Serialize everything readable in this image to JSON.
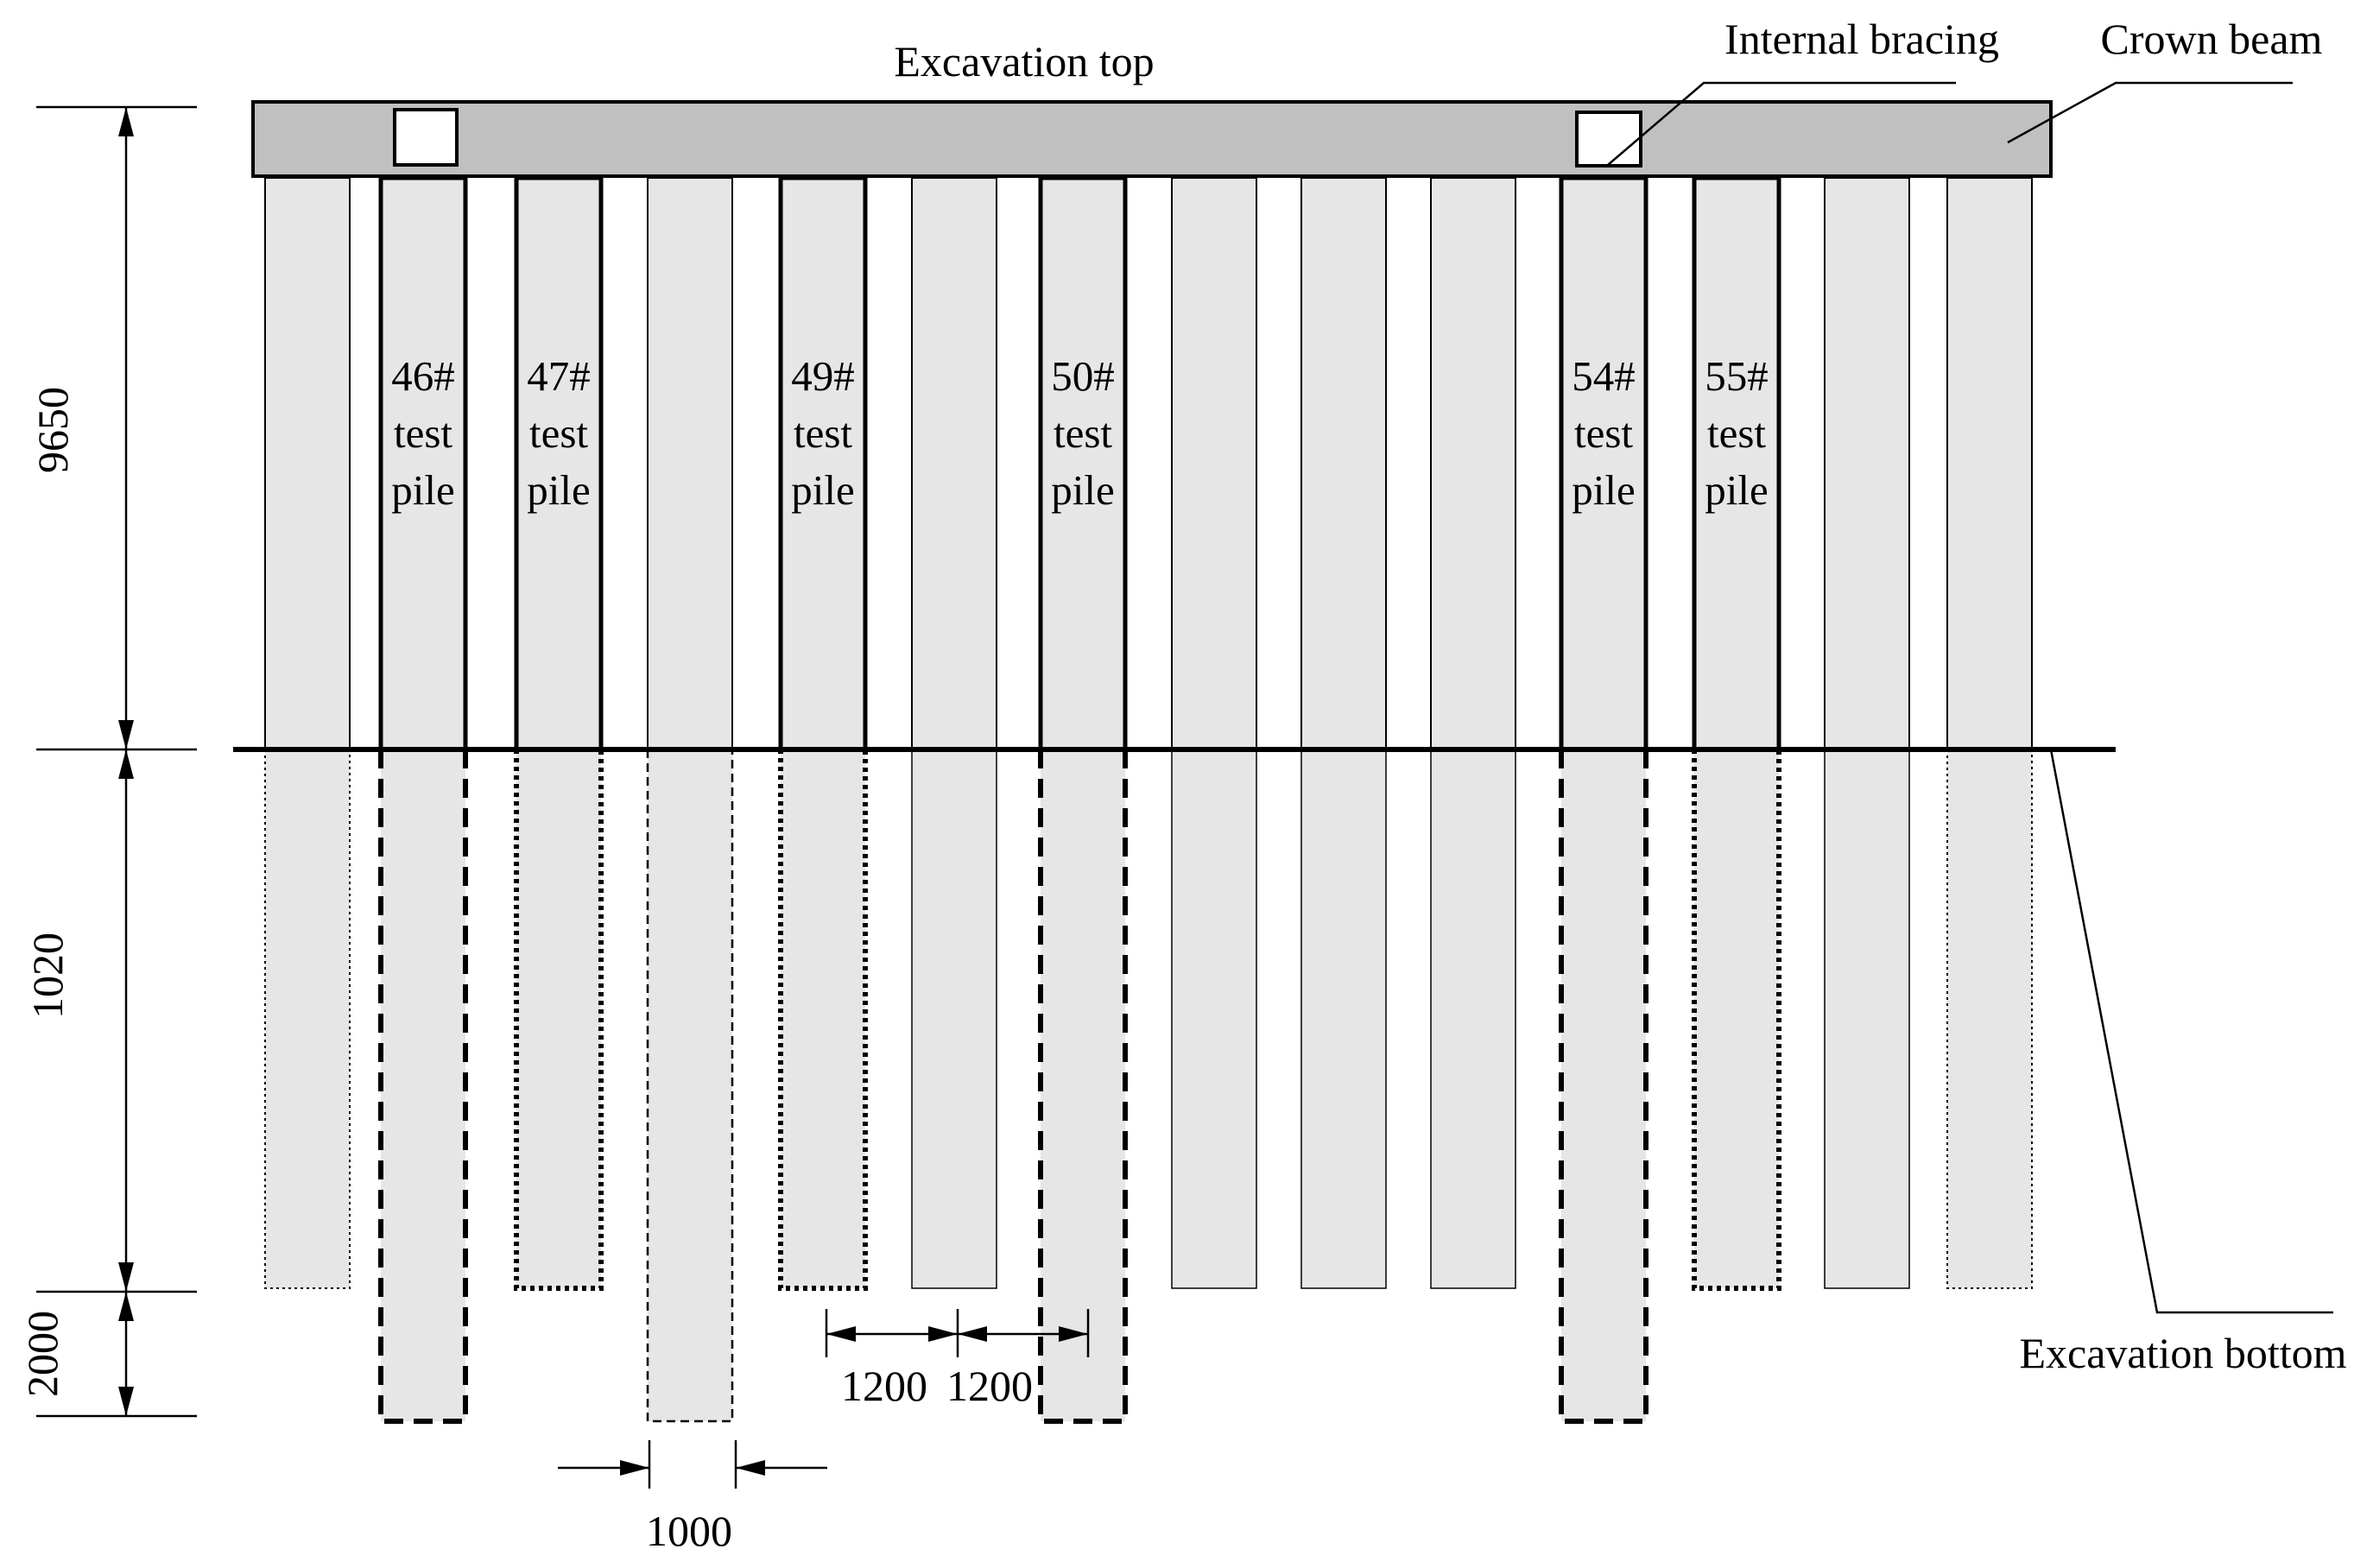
{
  "labels": {
    "top": "Excavation top",
    "bracing": "Internal bracing",
    "crown": "Crown beam",
    "bottom": "Excavation bottom"
  },
  "dimensions": {
    "upper": "9650",
    "middle": "1020",
    "lower": "2000",
    "spacing_a": "1200",
    "spacing_b": "1200",
    "pile_width": "1000"
  },
  "piles": [
    {
      "test": false,
      "embed": "normal",
      "style": "dotted-thin"
    },
    {
      "test": true,
      "id": "46#",
      "line2": "test",
      "line3": "pile",
      "embed": "deep",
      "style": "dashed-bold"
    },
    {
      "test": true,
      "id": "47#",
      "line2": "test",
      "line3": "pile",
      "embed": "normal",
      "style": "dotted-bold"
    },
    {
      "test": false,
      "embed": "deep",
      "style": "dashed-thin"
    },
    {
      "test": true,
      "id": "49#",
      "line2": "test",
      "line3": "pile",
      "embed": "normal",
      "style": "dotted-bold"
    },
    {
      "test": false,
      "embed": "normal",
      "style": "solid-thin"
    },
    {
      "test": true,
      "id": "50#",
      "line2": "test",
      "line3": "pile",
      "embed": "deep",
      "style": "dashed-bold"
    },
    {
      "test": false,
      "embed": "normal",
      "style": "solid-thin"
    },
    {
      "test": false,
      "embed": "normal",
      "style": "solid-thin"
    },
    {
      "test": false,
      "embed": "normal",
      "style": "solid-thin"
    },
    {
      "test": true,
      "id": "54#",
      "line2": "test",
      "line3": "pile",
      "embed": "deep",
      "style": "dashed-bold"
    },
    {
      "test": true,
      "id": "55#",
      "line2": "test",
      "line3": "pile",
      "embed": "normal",
      "style": "dotted-bold"
    },
    {
      "test": false,
      "embed": "normal",
      "style": "solid-thin"
    },
    {
      "test": false,
      "embed": "normal",
      "style": "dotted-thin"
    }
  ],
  "colors": {
    "pile_fill": "#e6e6e6",
    "beam_fill": "#c0c0c0",
    "line": "#000000"
  }
}
